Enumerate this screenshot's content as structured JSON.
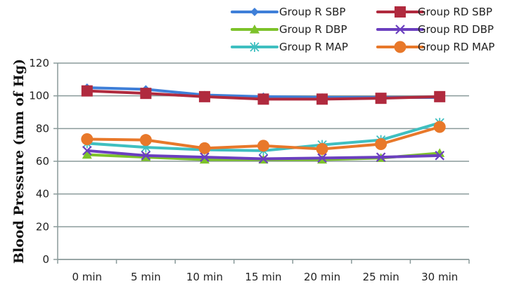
{
  "chart_data": {
    "type": "line",
    "title": "",
    "xlabel": "",
    "ylabel": "Blood Pressure (mm of Hg)",
    "categories": [
      "0 min",
      "5 min",
      "10 min",
      "15 min",
      "20 min",
      "25 min",
      "30 min"
    ],
    "ylim": [
      0,
      120
    ],
    "yticks": [
      0,
      20,
      40,
      60,
      80,
      100,
      120
    ],
    "grid": true,
    "legend_position": "top-right",
    "series": [
      {
        "name": "Group R SBP",
        "color": "#3F7FD8",
        "marker": "diamond",
        "values": [
          105,
          104,
          100.5,
          99.5,
          99,
          99,
          99
        ]
      },
      {
        "name": "Group RD SBP",
        "color": "#B02A3E",
        "marker": "square",
        "values": [
          103,
          101.5,
          99.5,
          98,
          98,
          98.5,
          99.5
        ]
      },
      {
        "name": "Group R DBP",
        "color": "#7DC22A",
        "marker": "triangle",
        "values": [
          64,
          62.5,
          61,
          61,
          61,
          62,
          65
        ]
      },
      {
        "name": "Group RD DBP",
        "color": "#6B3FBF",
        "marker": "x",
        "values": [
          66.5,
          63.5,
          62.5,
          61.5,
          62,
          62.5,
          63.5
        ]
      },
      {
        "name": "Group R MAP",
        "color": "#3FBFC0",
        "marker": "asterisk",
        "values": [
          71,
          68.5,
          67,
          66.5,
          70,
          73,
          83.5
        ]
      },
      {
        "name": "Group RD MAP",
        "color": "#E8782A",
        "marker": "circle",
        "values": [
          73.5,
          73,
          68,
          69.5,
          67.5,
          70.5,
          81
        ]
      }
    ]
  }
}
